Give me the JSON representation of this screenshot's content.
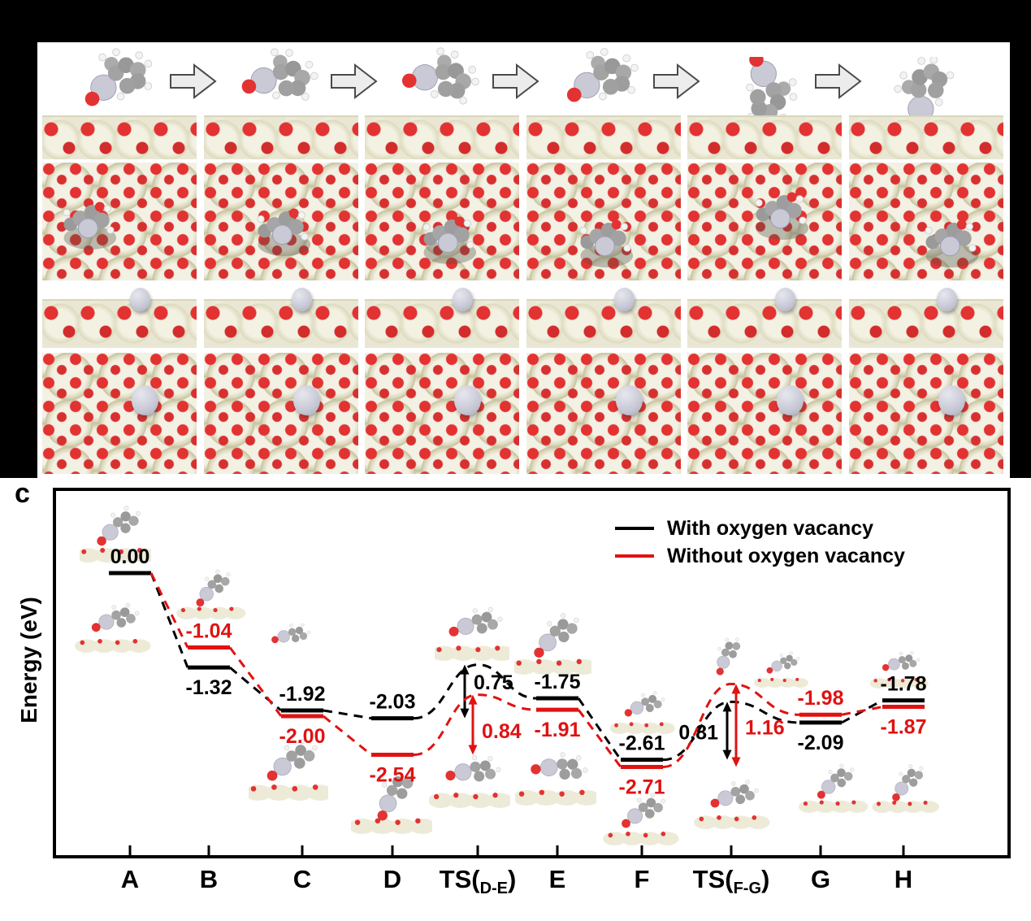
{
  "figure": {
    "panel_label": "c",
    "ylabel": "Energy (eV)",
    "legend": [
      {
        "label": "With oxygen vacancy",
        "color": "#000000"
      },
      {
        "label": "Without oxygen vacancy",
        "color": "#e01212"
      }
    ]
  },
  "reaction_sequence": {
    "step_count": 6,
    "arrow_icon": "right-block-arrow",
    "rows": [
      "gas-phase-molecule",
      "slab-side-view-with-adsorbate",
      "slab-top-view-with-adsorbate",
      "slab-side-view-metal-adatom",
      "slab-top-view-metal-adatom"
    ],
    "atom_colors": {
      "support": "#efeedd",
      "oxygen": "#e33232",
      "carbon": "#9d9d9d",
      "hydrogen": "#f3f3f3",
      "metal": "#c9cad6"
    }
  },
  "chart_data": {
    "type": "line",
    "subtype": "reaction-energy-profile",
    "title": "",
    "xlabel": "",
    "ylabel": "Energy (eV)",
    "grid": false,
    "legend_position": "top-right",
    "categories": [
      "A",
      "B",
      "C",
      "D",
      "TS(D-E)",
      "E",
      "F",
      "TS(F-G)",
      "G",
      "H"
    ],
    "x_tick_labels": [
      {
        "main": "A"
      },
      {
        "main": "B"
      },
      {
        "main": "C"
      },
      {
        "main": "D"
      },
      {
        "main": "TS(",
        "sub": "D-E",
        "close": ")"
      },
      {
        "main": "E"
      },
      {
        "main": "F"
      },
      {
        "main": "TS(",
        "sub": "F-G",
        "close": ")"
      },
      {
        "main": "G"
      },
      {
        "main": "H"
      }
    ],
    "series": [
      {
        "name": "With oxygen vacancy",
        "color": "#000000",
        "values": [
          0.0,
          -1.32,
          -1.92,
          -2.03,
          -1.28,
          -1.75,
          -2.61,
          -1.8,
          -2.09,
          -1.78
        ],
        "value_labels": [
          "0.00",
          "-1.32",
          "-1.92",
          "-2.03",
          null,
          "-1.75",
          "-2.61",
          null,
          "-2.09",
          "-1.78"
        ],
        "label_side": [
          "above",
          "below",
          "above",
          "above",
          null,
          "above",
          "above",
          null,
          "below",
          "above"
        ],
        "barriers": [
          {
            "ts": "TS(D-E)",
            "from": "D",
            "label": "0.75"
          },
          {
            "ts": "TS(F-G)",
            "from": "F",
            "label": "0.81"
          }
        ]
      },
      {
        "name": "Without oxygen vacancy",
        "color": "#e01212",
        "values": [
          0.0,
          -1.04,
          -2.0,
          -2.54,
          -1.7,
          -1.91,
          -2.71,
          -1.55,
          -1.98,
          -1.87
        ],
        "value_labels": [
          null,
          "-1.04",
          "-2.00",
          "-2.54",
          null,
          "-1.91",
          "-2.71",
          null,
          "-1.98",
          "-1.87"
        ],
        "label_side": [
          null,
          "above",
          "below",
          "below",
          null,
          "below",
          "below",
          null,
          "above",
          "below"
        ],
        "barriers": [
          {
            "ts": "TS(D-E)",
            "from": "D",
            "label": "0.84"
          },
          {
            "ts": "TS(F-G)",
            "from": "F",
            "label": "1.16"
          }
        ]
      }
    ]
  }
}
